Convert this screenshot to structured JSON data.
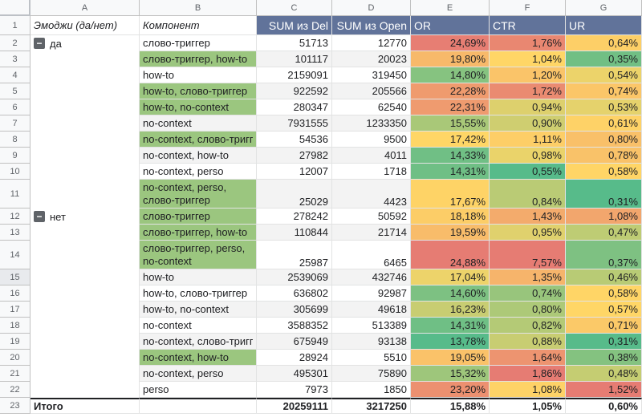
{
  "columns": [
    "A",
    "B",
    "C",
    "D",
    "E",
    "F",
    "G"
  ],
  "header": {
    "row_num": "1",
    "a": "Эмоджи (да/нет)",
    "b": "Компонент",
    "c": "SUM из Del",
    "d": "SUM из Open",
    "e": "OR",
    "f": "CTR",
    "g": "UR"
  },
  "groups": [
    {
      "label": "да",
      "toggle": "−",
      "row": 2
    },
    {
      "label": "нет",
      "toggle": "−",
      "row": 12
    }
  ],
  "rows": [
    {
      "num": "2",
      "b": "слово-триггер",
      "c": "51713",
      "d": "12770",
      "e": "24,69%",
      "f": "1,76%",
      "g": "0,64%"
    },
    {
      "num": "3",
      "b": "слово-триггер, how-to",
      "c": "101117",
      "d": "20023",
      "e": "19,80%",
      "f": "1,04%",
      "g": "0,35%"
    },
    {
      "num": "4",
      "b": "how-to",
      "c": "2159091",
      "d": "319450",
      "e": "14,80%",
      "f": "1,20%",
      "g": "0,54%"
    },
    {
      "num": "5",
      "b": "how-to, слово-триггер",
      "c": "922592",
      "d": "205566",
      "e": "22,28%",
      "f": "1,72%",
      "g": "0,74%"
    },
    {
      "num": "6",
      "b": "how-to, no-context",
      "c": "280347",
      "d": "62540",
      "e": "22,31%",
      "f": "0,94%",
      "g": "0,53%"
    },
    {
      "num": "7",
      "b": "no-context",
      "c": "7931555",
      "d": "1233350",
      "e": "15,55%",
      "f": "0,90%",
      "g": "0,61%"
    },
    {
      "num": "8",
      "b": "no-context, слово-тригге",
      "c": "54536",
      "d": "9500",
      "e": "17,42%",
      "f": "1,11%",
      "g": "0,80%"
    },
    {
      "num": "9",
      "b": "no-context, how-to",
      "c": "27982",
      "d": "4011",
      "e": "14,33%",
      "f": "0,98%",
      "g": "0,78%"
    },
    {
      "num": "10",
      "b": "no-context, perso",
      "c": "12007",
      "d": "1718",
      "e": "14,31%",
      "f": "0,55%",
      "g": "0,58%"
    },
    {
      "num": "11",
      "b": "no-context, perso, слово-триггер",
      "c": "25029",
      "d": "4423",
      "e": "17,67%",
      "f": "0,84%",
      "g": "0,31%"
    },
    {
      "num": "12",
      "b": "слово-триггер",
      "c": "278242",
      "d": "50592",
      "e": "18,18%",
      "f": "1,43%",
      "g": "1,08%"
    },
    {
      "num": "13",
      "b": "слово-триггер, how-to",
      "c": "110844",
      "d": "21714",
      "e": "19,59%",
      "f": "0,95%",
      "g": "0,47%"
    },
    {
      "num": "14",
      "b": "слово-триггер, perso, no-context",
      "c": "25987",
      "d": "6465",
      "e": "24,88%",
      "f": "7,57%",
      "g": "0,37%"
    },
    {
      "num": "15",
      "b": "how-to",
      "c": "2539069",
      "d": "432746",
      "e": "17,04%",
      "f": "1,35%",
      "g": "0,46%"
    },
    {
      "num": "16",
      "b": "how-to, слово-триггер",
      "c": "636802",
      "d": "92987",
      "e": "14,60%",
      "f": "0,74%",
      "g": "0,58%"
    },
    {
      "num": "17",
      "b": "how-to, no-context",
      "c": "305699",
      "d": "49618",
      "e": "16,23%",
      "f": "0,80%",
      "g": "0,57%"
    },
    {
      "num": "18",
      "b": "no-context",
      "c": "3588352",
      "d": "513389",
      "e": "14,31%",
      "f": "0,82%",
      "g": "0,71%"
    },
    {
      "num": "19",
      "b": "no-context, слово-тригге",
      "c": "675949",
      "d": "93138",
      "e": "13,78%",
      "f": "0,88%",
      "g": "0,31%"
    },
    {
      "num": "20",
      "b": "no-context, how-to",
      "c": "28924",
      "d": "5510",
      "e": "19,05%",
      "f": "1,64%",
      "g": "0,38%"
    },
    {
      "num": "21",
      "b": "no-context, perso",
      "c": "495301",
      "d": "75890",
      "e": "15,32%",
      "f": "1,86%",
      "g": "0,48%"
    },
    {
      "num": "22",
      "b": "perso",
      "c": "7973",
      "d": "1850",
      "e": "23,20%",
      "f": "1,08%",
      "g": "1,52%"
    }
  ],
  "total": {
    "num": "23",
    "a": "Итого",
    "c": "20259111",
    "d": "3217250",
    "e": "15,88%",
    "f": "1,05%",
    "g": "0,60%"
  },
  "highlight_color": "#9bc67f",
  "header_color": "#61739a",
  "scale_colors": {
    "low": "#57bb8a",
    "mid": "#ffd666",
    "high": "#e67c73"
  }
}
